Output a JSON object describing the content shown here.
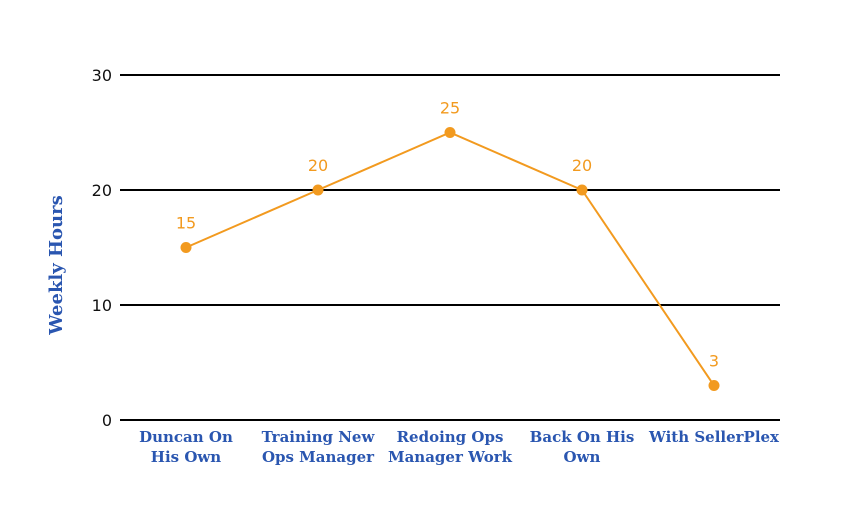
{
  "chart_data": {
    "type": "line",
    "title": "",
    "xlabel": "",
    "ylabel": "Weekly Hours",
    "ylim": [
      0,
      30
    ],
    "yticks": [
      0,
      10,
      20,
      30
    ],
    "grid": true,
    "categories": [
      [
        "Duncan On",
        "His Own"
      ],
      [
        "Training New",
        "Ops Manager"
      ],
      [
        "Redoing Ops",
        "Manager Work"
      ],
      [
        "Back On His",
        "Own"
      ],
      [
        "With SellerPlex"
      ]
    ],
    "series": [
      {
        "values": [
          15,
          20,
          25,
          20,
          3
        ],
        "color": "#f29a1f",
        "data_labels": true
      }
    ],
    "colors": {
      "axis_label": "#2a56b0",
      "grid": "#000000"
    }
  }
}
